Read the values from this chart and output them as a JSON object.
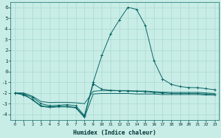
{
  "xlabel": "Humidex (Indice chaleur)",
  "xlim": [
    -0.5,
    23.5
  ],
  "ylim": [
    -4.5,
    6.5
  ],
  "yticks": [
    -4,
    -3,
    -2,
    -1,
    0,
    1,
    2,
    3,
    4,
    5,
    6
  ],
  "xticks": [
    0,
    1,
    2,
    3,
    4,
    5,
    6,
    7,
    8,
    9,
    10,
    11,
    12,
    13,
    14,
    15,
    16,
    17,
    18,
    19,
    20,
    21,
    22,
    23
  ],
  "background_color": "#c8ece6",
  "grid_color": "#a8d8d0",
  "line_color": "#006060",
  "series": [
    {
      "x": [
        0,
        1,
        2,
        3,
        4,
        5,
        6,
        7,
        8,
        9,
        10,
        11,
        12,
        13,
        14,
        15,
        16,
        17,
        18,
        19,
        20,
        21,
        22,
        23
      ],
      "y": [
        -2.0,
        -2.2,
        -2.6,
        -3.2,
        -3.3,
        -3.25,
        -3.25,
        -3.35,
        -4.2,
        -1.15,
        -1.65,
        -1.75,
        -1.8,
        -1.82,
        -1.85,
        -1.88,
        -1.95,
        -2.0,
        -2.05,
        -2.05,
        -2.05,
        -2.05,
        -2.1,
        -2.15
      ],
      "marker": "+"
    },
    {
      "x": [
        0,
        1,
        2,
        3,
        4,
        5,
        6,
        7,
        8,
        9,
        10,
        11,
        12,
        13,
        14,
        15,
        16,
        17,
        18,
        19,
        20,
        21,
        22,
        23
      ],
      "y": [
        -2.05,
        -2.1,
        -2.65,
        -3.25,
        -3.35,
        -3.3,
        -3.3,
        -3.4,
        -4.3,
        -2.1,
        -2.05,
        -2.05,
        -2.05,
        -2.05,
        -2.1,
        -2.1,
        -2.1,
        -2.15,
        -2.15,
        -2.15,
        -2.15,
        -2.15,
        -2.2,
        -2.2
      ],
      "marker": null
    },
    {
      "x": [
        0,
        1,
        2,
        3,
        4,
        5,
        6,
        7,
        8,
        9,
        10,
        11,
        12,
        13,
        14,
        15,
        16,
        17,
        18,
        19,
        20,
        21,
        22,
        23
      ],
      "y": [
        -2.0,
        -2.1,
        -2.4,
        -3.0,
        -3.2,
        -3.15,
        -3.1,
        -3.2,
        -4.1,
        -1.0,
        1.5,
        3.5,
        4.8,
        6.0,
        5.8,
        4.3,
        1.0,
        -0.7,
        -1.2,
        -1.4,
        -1.5,
        -1.5,
        -1.6,
        -1.7
      ],
      "marker": "+"
    },
    {
      "x": [
        0,
        1,
        2,
        3,
        4,
        5,
        6,
        7,
        8,
        9,
        10,
        11,
        12,
        13,
        14,
        15,
        16,
        17,
        18,
        19,
        20,
        21,
        22,
        23
      ],
      "y": [
        -2.0,
        -2.0,
        -2.3,
        -2.8,
        -2.9,
        -2.88,
        -2.88,
        -2.92,
        -3.0,
        -1.85,
        -1.78,
        -1.78,
        -1.78,
        -1.78,
        -1.82,
        -1.82,
        -1.88,
        -1.92,
        -1.95,
        -1.95,
        -1.95,
        -1.95,
        -2.0,
        -2.05
      ],
      "marker": null
    }
  ]
}
